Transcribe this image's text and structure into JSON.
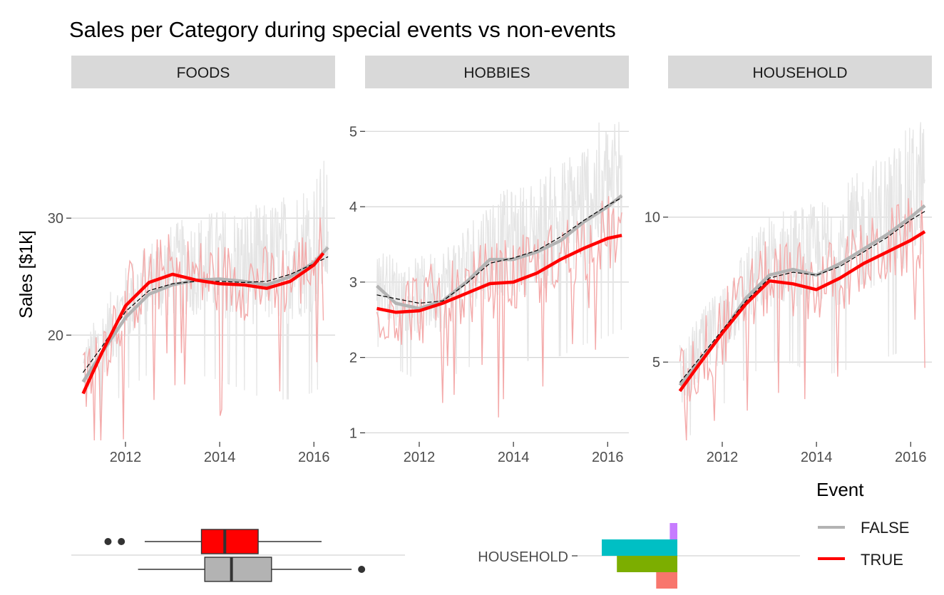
{
  "chart_data": {
    "type": "line",
    "title": "Sales per Category during special events vs non-events",
    "ylabel": "Sales [$1k]",
    "xlabel": "",
    "legend": {
      "title": "Event",
      "placement": "right",
      "entries": [
        {
          "label": "FALSE",
          "color": "#b3b3b3"
        },
        {
          "label": "TRUE",
          "color": "#ff0000"
        }
      ]
    },
    "colors": {
      "strip_bg": "#d9d9d9",
      "grid": "#d4d4d4",
      "raw_false": "#e5e5e5",
      "raw_true": "#f4aaaa",
      "trend": "#000000"
    },
    "x_ticks": [
      2012,
      2014,
      2016
    ],
    "panels": [
      {
        "name": "FOODS",
        "xlim": [
          2010.85,
          2016.45
        ],
        "ylim": [
          11,
          40
        ],
        "y_ticks": [
          20,
          30
        ],
        "series": [
          {
            "name": "FALSE",
            "x": [
              2011.1,
              2011.5,
              2012.0,
              2012.5,
              2013.0,
              2013.5,
              2014.0,
              2014.5,
              2015.0,
              2015.5,
              2016.0,
              2016.3
            ],
            "y": [
              16,
              18.5,
              21.5,
              23.5,
              24.3,
              24.7,
              24.8,
              24.6,
              24.3,
              25.0,
              26.2,
              27.5
            ]
          },
          {
            "name": "TRUE",
            "x": [
              2011.1,
              2011.5,
              2012.0,
              2012.5,
              2013.0,
              2013.5,
              2014.0,
              2014.5,
              2015.0,
              2015.5,
              2016.0,
              2016.2
            ],
            "y": [
              15,
              18.5,
              22.5,
              24.5,
              25.2,
              24.7,
              24.4,
              24.3,
              24.0,
              24.6,
              26.0,
              27.0
            ]
          },
          {
            "name": "overall",
            "x": [
              2011.1,
              2011.5,
              2012.0,
              2012.5,
              2013.0,
              2013.5,
              2014.0,
              2014.5,
              2015.0,
              2015.5,
              2016.0,
              2016.3
            ],
            "y": [
              16.8,
              19.0,
              22.0,
              23.8,
              24.4,
              24.6,
              24.6,
              24.5,
              24.6,
              25.2,
              26.1,
              26.7
            ]
          }
        ]
      },
      {
        "name": "HOBBIES",
        "xlim": [
          2010.85,
          2016.45
        ],
        "ylim": [
          0.9,
          5.4
        ],
        "y_ticks": [
          1,
          2,
          3,
          4,
          5
        ],
        "series": [
          {
            "name": "FALSE",
            "x": [
              2011.1,
              2011.5,
              2012.0,
              2012.5,
              2013.0,
              2013.5,
              2014.0,
              2014.5,
              2015.0,
              2015.5,
              2016.0,
              2016.3
            ],
            "y": [
              2.95,
              2.72,
              2.65,
              2.75,
              3.0,
              3.3,
              3.3,
              3.4,
              3.55,
              3.8,
              4.0,
              4.15
            ]
          },
          {
            "name": "TRUE",
            "x": [
              2011.1,
              2011.5,
              2012.0,
              2012.5,
              2013.0,
              2013.5,
              2014.0,
              2014.5,
              2015.0,
              2015.5,
              2016.0,
              2016.3
            ],
            "y": [
              2.65,
              2.6,
              2.62,
              2.72,
              2.85,
              2.98,
              3.0,
              3.12,
              3.3,
              3.45,
              3.58,
              3.62
            ]
          },
          {
            "name": "overall",
            "x": [
              2011.1,
              2011.5,
              2012.0,
              2012.5,
              2013.0,
              2013.5,
              2014.0,
              2014.5,
              2015.0,
              2015.5,
              2016.0,
              2016.3
            ],
            "y": [
              2.83,
              2.78,
              2.72,
              2.75,
              2.98,
              3.25,
              3.32,
              3.42,
              3.6,
              3.82,
              4.02,
              4.12
            ]
          }
        ]
      },
      {
        "name": "HOUSEHOLD",
        "xlim": [
          2010.85,
          2016.45
        ],
        "ylim": [
          2.3,
          14.0
        ],
        "y_ticks": [
          5,
          10
        ],
        "series": [
          {
            "name": "FALSE",
            "x": [
              2011.1,
              2011.5,
              2012.0,
              2012.5,
              2013.0,
              2013.5,
              2014.0,
              2014.5,
              2015.0,
              2015.5,
              2016.0,
              2016.3
            ],
            "y": [
              4.2,
              5.0,
              6.0,
              7.2,
              8.0,
              8.2,
              8.0,
              8.4,
              8.9,
              9.4,
              10.0,
              10.4
            ]
          },
          {
            "name": "TRUE",
            "x": [
              2011.1,
              2011.5,
              2012.0,
              2012.5,
              2013.0,
              2013.5,
              2014.0,
              2014.5,
              2015.0,
              2015.5,
              2016.0,
              2016.3
            ],
            "y": [
              4.0,
              4.9,
              6.0,
              7.0,
              7.8,
              7.7,
              7.5,
              7.9,
              8.4,
              8.8,
              9.2,
              9.5
            ]
          },
          {
            "name": "overall",
            "x": [
              2011.1,
              2011.5,
              2012.0,
              2012.5,
              2013.0,
              2013.5,
              2014.0,
              2014.5,
              2015.0,
              2015.5,
              2016.0,
              2016.3
            ],
            "y": [
              4.3,
              5.1,
              6.1,
              7.1,
              7.9,
              8.1,
              8.0,
              8.3,
              8.8,
              9.3,
              9.9,
              10.2
            ]
          }
        ]
      }
    ],
    "boxplots": [
      {
        "group": "TRUE",
        "color": "#ff0000",
        "q1": 0.39,
        "median": 0.46,
        "q3": 0.56,
        "whisker_low": 0.22,
        "whisker_high": 0.75,
        "outliers": [
          0.11,
          0.15
        ]
      },
      {
        "group": "FALSE",
        "color": "#b3b3b3",
        "q1": 0.4,
        "median": 0.48,
        "q3": 0.6,
        "whisker_low": 0.2,
        "whisker_high": 0.84,
        "outliers": [
          0.87
        ]
      }
    ],
    "stacked_bar": {
      "category": "HOUSEHOLD",
      "segments": [
        {
          "color": "#c77cff",
          "value": 0.1
        },
        {
          "color": "#00bfc4",
          "value": 1.0
        },
        {
          "color": "#7cae00",
          "value": 0.8
        },
        {
          "color": "#f8766d",
          "value": 0.28
        }
      ]
    }
  }
}
